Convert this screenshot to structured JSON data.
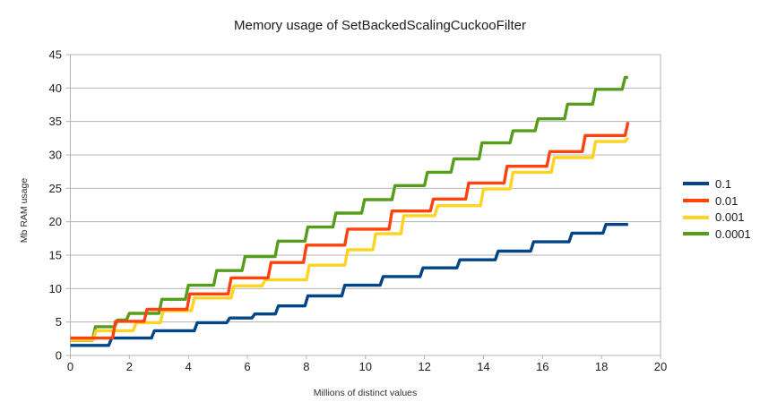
{
  "page": {
    "background": "#ffffff"
  },
  "chart_data": {
    "type": "line",
    "step": true,
    "title": "Memory usage of SetBackedScalingCuckooFilter",
    "xlabel": "Millions of distinct values",
    "ylabel": "Mb RAM usage",
    "xlim": [
      0,
      20
    ],
    "ylim": [
      0,
      45
    ],
    "xticks": [
      0,
      2,
      4,
      6,
      8,
      10,
      12,
      14,
      16,
      18,
      20
    ],
    "yticks": [
      0,
      5,
      10,
      15,
      20,
      25,
      30,
      35,
      40,
      45
    ],
    "grid": "horizontal",
    "legend_position": "right",
    "x_end": 18.9,
    "colors": {
      "grid": "#b3b3b3",
      "axis": "#b3b3b3",
      "tick_text": "#1c1c1c"
    },
    "series": [
      {
        "name": "0.1",
        "color": "#004586",
        "steps": [
          [
            0,
            1.5
          ],
          [
            1.3,
            2.6
          ],
          [
            2.75,
            3.7
          ],
          [
            4.2,
            4.9
          ],
          [
            5.3,
            5.6
          ],
          [
            6.15,
            6.2
          ],
          [
            6.95,
            7.4
          ],
          [
            7.95,
            8.9
          ],
          [
            9.2,
            10.5
          ],
          [
            10.5,
            11.8
          ],
          [
            11.85,
            13.1
          ],
          [
            13.1,
            14.3
          ],
          [
            14.4,
            15.6
          ],
          [
            15.6,
            17.0
          ],
          [
            16.9,
            18.3
          ],
          [
            18.05,
            19.6
          ]
        ]
      },
      {
        "name": "0.01",
        "color": "#FF420E",
        "steps": [
          [
            0,
            2.6
          ],
          [
            1.43,
            5.1
          ],
          [
            2.5,
            6.9
          ],
          [
            3.95,
            9.2
          ],
          [
            5.35,
            11.6
          ],
          [
            6.7,
            13.9
          ],
          [
            7.9,
            16.5
          ],
          [
            9.3,
            18.9
          ],
          [
            10.8,
            21.6
          ],
          [
            12.2,
            23.4
          ],
          [
            13.4,
            25.8
          ],
          [
            14.7,
            28.3
          ],
          [
            16.15,
            30.5
          ],
          [
            17.35,
            32.9
          ],
          [
            18.8,
            34.9
          ]
        ]
      },
      {
        "name": "0.001",
        "color": "#FFD320",
        "steps": [
          [
            0,
            2.3
          ],
          [
            0.77,
            3.7
          ],
          [
            2.13,
            4.9
          ],
          [
            3.05,
            6.7
          ],
          [
            4.1,
            8.6
          ],
          [
            5.45,
            10.4
          ],
          [
            6.5,
            11.3
          ],
          [
            8.0,
            13.5
          ],
          [
            9.3,
            15.8
          ],
          [
            10.25,
            18.2
          ],
          [
            11.2,
            20.9
          ],
          [
            12.35,
            22.4
          ],
          [
            13.9,
            24.9
          ],
          [
            14.9,
            27.4
          ],
          [
            16.3,
            29.6
          ],
          [
            17.7,
            32.0
          ],
          [
            18.8,
            32.6
          ]
        ]
      },
      {
        "name": "0.0001",
        "color": "#579D1C",
        "steps": [
          [
            0,
            2.25
          ],
          [
            0.75,
            4.3
          ],
          [
            1.5,
            5.3
          ],
          [
            1.9,
            6.3
          ],
          [
            3.0,
            8.4
          ],
          [
            3.9,
            10.5
          ],
          [
            4.86,
            12.7
          ],
          [
            5.82,
            14.8
          ],
          [
            6.94,
            17.1
          ],
          [
            7.95,
            19.2
          ],
          [
            8.9,
            21.3
          ],
          [
            9.87,
            23.3
          ],
          [
            10.9,
            25.4
          ],
          [
            12.0,
            27.4
          ],
          [
            12.9,
            29.4
          ],
          [
            13.85,
            31.8
          ],
          [
            14.9,
            33.6
          ],
          [
            15.75,
            35.4
          ],
          [
            16.75,
            37.6
          ],
          [
            17.7,
            39.8
          ],
          [
            18.7,
            41.6
          ]
        ]
      }
    ],
    "draw_order": [
      0,
      3,
      2,
      1
    ]
  }
}
